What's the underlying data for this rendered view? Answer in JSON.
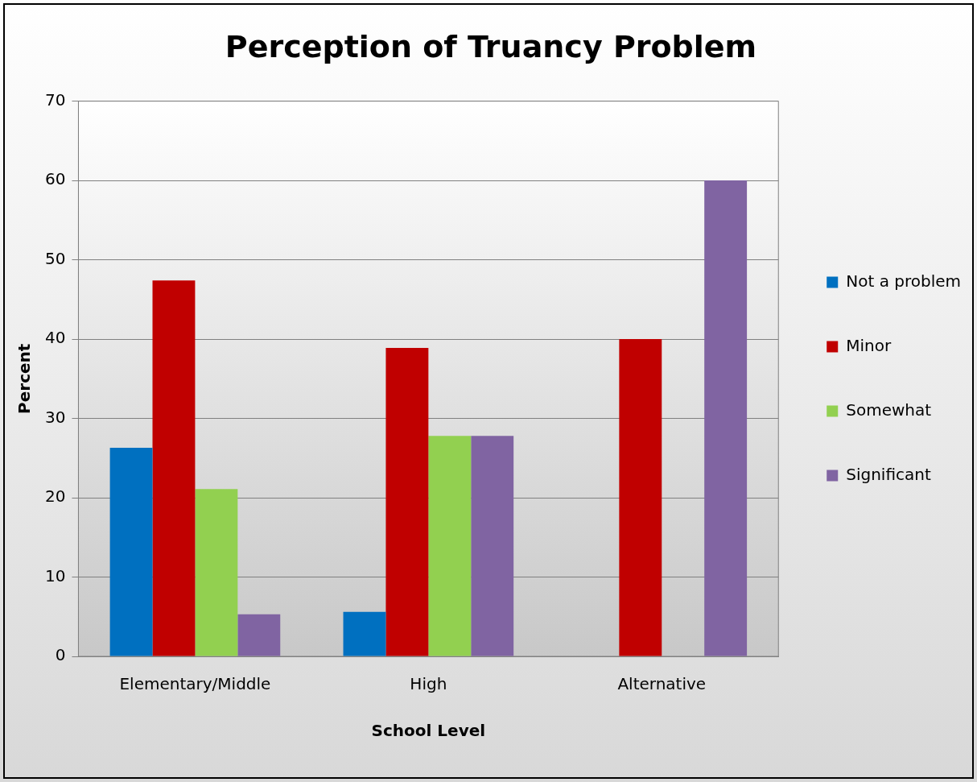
{
  "chart_data": {
    "type": "bar",
    "title": "Perception of Truancy Problem",
    "xlabel": "School Level",
    "ylabel": "Percent",
    "categories": [
      "Elementary/Middle",
      "High",
      "Alternative"
    ],
    "series": [
      {
        "name": "Not a problem",
        "color": "#0070c0",
        "values": [
          26.3,
          5.6,
          0
        ]
      },
      {
        "name": "Minor",
        "color": "#c00000",
        "values": [
          47.4,
          38.9,
          40
        ]
      },
      {
        "name": "Somewhat",
        "color": "#92d050",
        "values": [
          21.1,
          27.8,
          0
        ]
      },
      {
        "name": "Significant",
        "color": "#8064a2",
        "values": [
          5.3,
          27.8,
          60
        ]
      }
    ],
    "ylim": [
      0,
      70
    ],
    "yticks": [
      0,
      10,
      20,
      30,
      40,
      50,
      60,
      70
    ],
    "grid": "y",
    "legend": "right"
  }
}
